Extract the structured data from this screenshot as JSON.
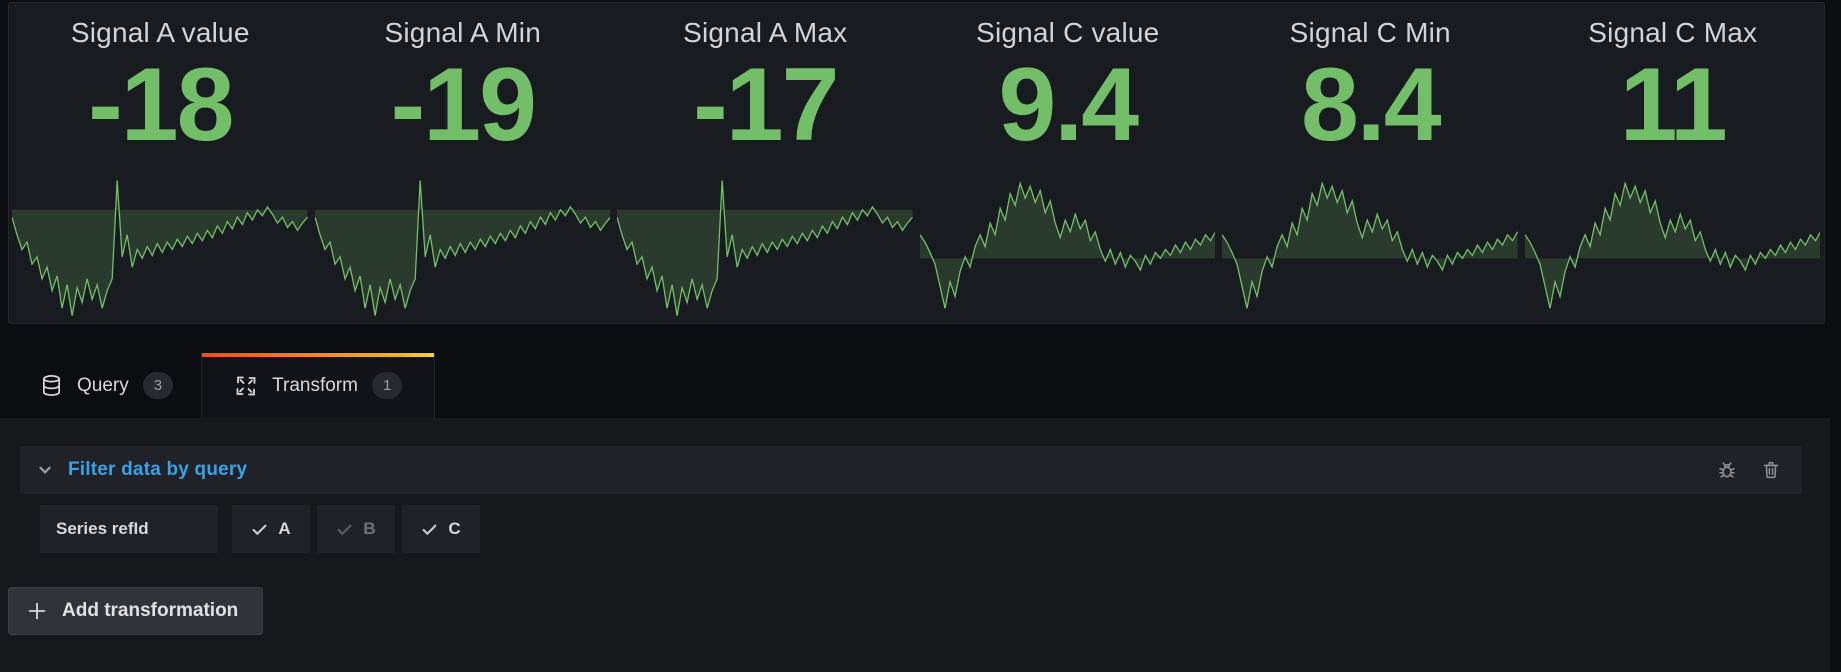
{
  "colors": {
    "stat_green": "#73bf69",
    "spark_fill": "rgba(115,191,105,0.20)",
    "link_blue": "#38a2e8",
    "icon_gray": "#8e9297",
    "tab_gradient_start": "#f2491c",
    "tab_gradient_end": "#fbd23c"
  },
  "panel": {
    "stats": [
      {
        "title": "Signal A value",
        "value": "-18",
        "series": "a"
      },
      {
        "title": "Signal A Min",
        "value": "-19",
        "series": "a"
      },
      {
        "title": "Signal A Max",
        "value": "-17",
        "series": "a"
      },
      {
        "title": "Signal C value",
        "value": "9.4",
        "series": "c"
      },
      {
        "title": "Signal C Min",
        "value": "8.4",
        "series": "c"
      },
      {
        "title": "Signal C Max",
        "value": "11",
        "series": "c"
      }
    ]
  },
  "chart_data": {
    "type": "line",
    "note": "sparklines normalized 0=bottom 1=top, fill drawn between line and baseline",
    "series": [
      {
        "name": "a",
        "baseline": 0.77,
        "values": [
          0.72,
          0.6,
          0.5,
          0.55,
          0.4,
          0.45,
          0.3,
          0.38,
          0.22,
          0.32,
          0.1,
          0.26,
          0.05,
          0.24,
          0.14,
          0.3,
          0.16,
          0.26,
          0.1,
          0.22,
          0.3,
          0.97,
          0.45,
          0.6,
          0.38,
          0.5,
          0.44,
          0.52,
          0.46,
          0.54,
          0.48,
          0.55,
          0.5,
          0.57,
          0.52,
          0.59,
          0.54,
          0.61,
          0.56,
          0.63,
          0.58,
          0.66,
          0.61,
          0.69,
          0.64,
          0.72,
          0.67,
          0.75,
          0.7,
          0.77,
          0.73,
          0.79,
          0.74,
          0.68,
          0.72,
          0.65,
          0.69,
          0.63,
          0.68,
          0.72
        ]
      },
      {
        "name": "c",
        "baseline": 0.44,
        "values": [
          0.6,
          0.55,
          0.48,
          0.4,
          0.25,
          0.1,
          0.28,
          0.18,
          0.35,
          0.45,
          0.38,
          0.52,
          0.6,
          0.52,
          0.68,
          0.6,
          0.78,
          0.7,
          0.88,
          0.8,
          0.95,
          0.85,
          0.93,
          0.82,
          0.9,
          0.75,
          0.83,
          0.68,
          0.58,
          0.7,
          0.62,
          0.74,
          0.64,
          0.7,
          0.56,
          0.62,
          0.5,
          0.42,
          0.5,
          0.4,
          0.48,
          0.38,
          0.46,
          0.42,
          0.36,
          0.46,
          0.4,
          0.48,
          0.44,
          0.5,
          0.46,
          0.53,
          0.48,
          0.55,
          0.5,
          0.57,
          0.53,
          0.6,
          0.56,
          0.62
        ]
      }
    ]
  },
  "tabs": [
    {
      "label": "Query",
      "count": "3",
      "icon": "database-icon",
      "active": false
    },
    {
      "label": "Transform",
      "count": "1",
      "icon": "process-icon",
      "active": true
    }
  ],
  "transform_editor": {
    "title": "Filter data by query",
    "series_label": "Series refId",
    "refids": [
      {
        "label": "A",
        "selected": true
      },
      {
        "label": "B",
        "selected": false
      },
      {
        "label": "C",
        "selected": true
      }
    ],
    "add_button_label": "Add transformation"
  }
}
